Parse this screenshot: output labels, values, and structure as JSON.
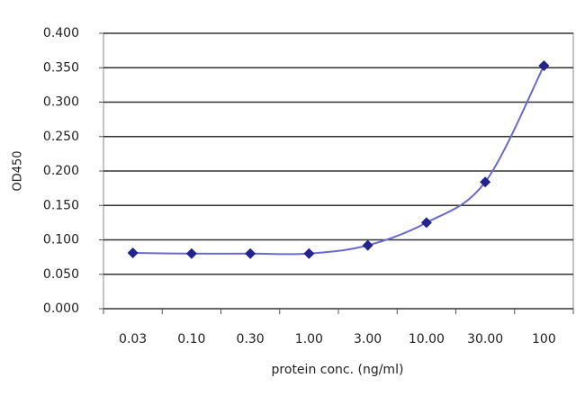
{
  "chart_data": {
    "type": "line",
    "x_label": "protein conc. (ng/ml)",
    "y_label": "OD450",
    "categories": [
      "0.03",
      "0.10",
      "0.30",
      "1.00",
      "3.00",
      "10.00",
      "30.00",
      "100"
    ],
    "values": [
      0.081,
      0.08,
      0.08,
      0.08,
      0.092,
      0.125,
      0.184,
      0.353
    ],
    "color": "#6a6acc",
    "marker_color": "#23238c",
    "ylim": [
      0,
      0.4
    ],
    "yticks": [
      {
        "value": 0,
        "label": "0.000"
      },
      {
        "value": 0.05,
        "label": "0.050"
      },
      {
        "value": 0.1,
        "label": "0.100"
      },
      {
        "value": 0.15,
        "label": "0.150"
      },
      {
        "value": 0.2,
        "label": "0.200"
      },
      {
        "value": 0.25,
        "label": "0.250"
      },
      {
        "value": 0.3,
        "label": "0.300"
      },
      {
        "value": 0.35,
        "label": "0.350"
      },
      {
        "value": 0.4,
        "label": "0.400"
      }
    ],
    "grid": true
  }
}
